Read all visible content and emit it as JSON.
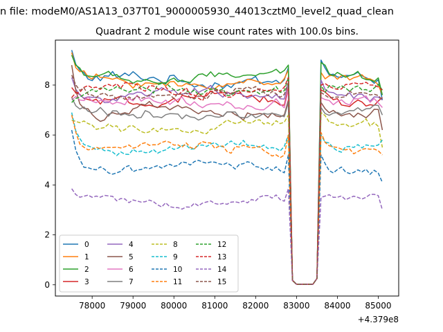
{
  "figure": {
    "suptitle": "n file: modeM0/AS1A13_037T01_9000005930_44013cztM0_level2_quad_clean"
  },
  "chart_data": {
    "type": "line",
    "title": "Quadrant 2 module wise count rates with 100.0s bins.",
    "xlabel": "",
    "ylabel": "",
    "x_offset_label": "+4.379e8",
    "xlim": [
      77100,
      85500
    ],
    "ylim": [
      -0.45,
      9.8
    ],
    "xticks": [
      78000,
      79000,
      80000,
      81000,
      82000,
      83000,
      84000,
      85000
    ],
    "yticks": [
      0,
      2,
      4,
      6,
      8
    ],
    "grid": false,
    "legend_position": "lower-left",
    "legend_columns": 4,
    "x_start": 77500,
    "x_step": 100,
    "gap_values": [
      1.0,
      0.18,
      0.02,
      0.02,
      0.02,
      0.02,
      0.02,
      0.25,
      1.0
    ],
    "series": [
      {
        "name": "0",
        "color": "#1f77b4",
        "dash": "solid",
        "base": 8.2,
        "noise": 0.35,
        "start": 9.4,
        "end": 7.4,
        "post": 9.0
      },
      {
        "name": "1",
        "color": "#ff7f0e",
        "dash": "solid",
        "base": 8.1,
        "noise": 0.3,
        "start": 9.3,
        "end": 7.6,
        "post": 8.5
      },
      {
        "name": "2",
        "color": "#2ca02c",
        "dash": "solid",
        "base": 8.3,
        "noise": 0.28,
        "start": 9.2,
        "end": 7.6,
        "post": 8.9
      },
      {
        "name": "3",
        "color": "#d62728",
        "dash": "solid",
        "base": 7.4,
        "noise": 0.3,
        "start": 7.9,
        "end": 7.5,
        "post": 7.8
      },
      {
        "name": "4",
        "color": "#9467bd",
        "dash": "solid",
        "base": 7.6,
        "noise": 0.28,
        "start": 8.3,
        "end": 7.4,
        "post": 8.2
      },
      {
        "name": "5",
        "color": "#8c564b",
        "dash": "solid",
        "base": 6.9,
        "noise": 0.3,
        "start": 8.8,
        "end": 6.2,
        "post": 7.3
      },
      {
        "name": "6",
        "color": "#e377c2",
        "dash": "solid",
        "base": 7.3,
        "noise": 0.3,
        "start": 7.4,
        "end": 7.1,
        "post": 7.5
      },
      {
        "name": "7",
        "color": "#7f7f7f",
        "dash": "solid",
        "base": 6.8,
        "noise": 0.3,
        "start": 7.5,
        "end": 6.8,
        "post": 7.1
      },
      {
        "name": "8",
        "color": "#bcbd22",
        "dash": "dashed",
        "base": 6.3,
        "noise": 0.28,
        "start": 6.6,
        "end": 5.5,
        "post": 6.9
      },
      {
        "name": "9",
        "color": "#17becf",
        "dash": "dashed",
        "base": 5.5,
        "noise": 0.25,
        "start": 6.9,
        "end": 5.8,
        "post": 6.0
      },
      {
        "name": "10",
        "color": "#1f77b4",
        "dash": "dashed",
        "base": 4.7,
        "noise": 0.25,
        "start": 6.2,
        "end": 4.1,
        "post": 5.2
      },
      {
        "name": "11",
        "color": "#ff7f0e",
        "dash": "dashed",
        "base": 5.5,
        "noise": 0.28,
        "start": 6.8,
        "end": 5.2,
        "post": 6.1
      },
      {
        "name": "12",
        "color": "#2ca02c",
        "dash": "dashed",
        "base": 7.8,
        "noise": 0.3,
        "start": 7.3,
        "end": 7.8,
        "post": 8.0
      },
      {
        "name": "13",
        "color": "#d62728",
        "dash": "dashed",
        "base": 7.8,
        "noise": 0.3,
        "start": 7.5,
        "end": 7.8,
        "post": 8.0
      },
      {
        "name": "14",
        "color": "#9467bd",
        "dash": "dashed",
        "base": 3.35,
        "noise": 0.2,
        "start": 3.85,
        "end": 3.0,
        "post": 3.5
      },
      {
        "name": "15",
        "color": "#8c564b",
        "dash": "dashed",
        "base": 7.6,
        "noise": 0.28,
        "start": 8.4,
        "end": 7.4,
        "post": 7.7
      }
    ]
  }
}
